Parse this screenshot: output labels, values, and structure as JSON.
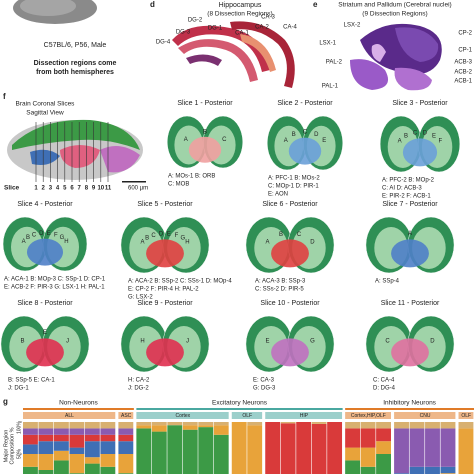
{
  "panel_c": {
    "strain": "C57BL/6, P56, Male",
    "note": [
      "Dissection regions come",
      "from both hemispheres"
    ]
  },
  "panel_d": {
    "letter": "d",
    "title": "Hippocampus",
    "subtitle": "(8 Dissection Regions)",
    "labels": [
      "DG-2",
      "DG-1",
      "CA-3",
      "DG-3",
      "CA-1",
      "CA-2",
      "CA-4",
      "DG-4"
    ]
  },
  "panel_e": {
    "letter": "e",
    "title": "Striatum and Pallidum (Cerebral nuclei)",
    "subtitle": "(9 Dissection Regions)",
    "labels": [
      "LSX-2",
      "CP-2",
      "LSX-1",
      "CP-1",
      "ACB-3",
      "PAL-2",
      "ACB-2",
      "ACB-1",
      "PAL-1"
    ]
  },
  "panel_f": {
    "letter": "f",
    "title": "Brain Coronal Slices",
    "subtitle": "Sagittal View",
    "slice_label": "Slice",
    "slice_numbers": [
      1,
      2,
      3,
      4,
      5,
      6,
      7,
      8,
      9,
      10,
      11
    ],
    "scale": "600 µm",
    "slices": [
      {
        "title": "Slice 1 - Posterior",
        "letters": [
          "A",
          "B",
          "C"
        ],
        "legend": [
          "A: MOs-1  B: ORB",
          "C: MOB"
        ]
      },
      {
        "title": "Slice 2 - Posterior",
        "letters": [
          "A",
          "B",
          "C",
          "D",
          "E"
        ],
        "legend": [
          "A: PFC-1  B: MOs-2",
          "C: MOp-1  D: PIR-1",
          "E: AON"
        ]
      },
      {
        "title": "Slice 3 - Posterior",
        "letters": [
          "A",
          "B",
          "C",
          "D",
          "E",
          "F"
        ],
        "legend": [
          "A: PFC-2  B: MOp-2",
          "C: AI  D: ACB-3",
          "E: PIR-2  F: ACB-1"
        ]
      },
      {
        "title": "Slice 4 - Posterior",
        "letters": [
          "A",
          "B",
          "C",
          "D",
          "E",
          "F",
          "G",
          "H"
        ],
        "legend": [
          "A: ACA-1  B: MOp-3  C: SSp-1  D: CP-1",
          "E: ACB-2  F: PIR-3  G: LSX-1  H: PAL-1"
        ]
      },
      {
        "title": "Slice 5 - Posterior",
        "letters": [
          "A",
          "B",
          "C",
          "D",
          "E",
          "F",
          "G",
          "H"
        ],
        "legend": [
          "A: ACA-2  B: SSp-2  C: SSs-1  D: MOp-4",
          "E: CP-2  F: PIR-4  H: PAL-2",
          "G: LSX-2"
        ]
      },
      {
        "title": "Slice 6 - Posterior",
        "letters": [
          "A",
          "B",
          "C",
          "D"
        ],
        "legend": [
          "A: ACA-3  B: SSp-3",
          "C: SSs-2  D: PIR-5"
        ]
      },
      {
        "title": "Slice 7 - Posterior",
        "letters": [
          "A"
        ],
        "legend": [
          "A: SSp-4"
        ]
      },
      {
        "title": "Slice 8 - Posterior",
        "letters": [
          "B",
          "E",
          "J"
        ],
        "legend": [
          "B: SSp-5  E: CA-1",
          "J: DG-1"
        ]
      },
      {
        "title": "Slice 9 - Posterior",
        "letters": [
          "H",
          "J"
        ],
        "legend": [
          "H: CA-2",
          "J: DG-2"
        ]
      },
      {
        "title": "Slice 10 - Posterior",
        "letters": [
          "E",
          "G"
        ],
        "legend": [
          "E: CA-3",
          "G: DG-3"
        ]
      },
      {
        "title": "Slice 11 - Posterior",
        "letters": [
          "C",
          "D"
        ],
        "legend": [
          "C: CA-4",
          "D: DG-4"
        ]
      }
    ]
  },
  "panel_g": {
    "letter": "g",
    "axis_label": [
      "Major Region",
      "Composition %"
    ],
    "ylim": [
      0,
      100
    ],
    "yticks": [
      {
        "value": 100,
        "label": "100%"
      },
      {
        "value": 50,
        "label": "50%"
      }
    ],
    "colors": [
      "#3c9a46",
      "#e8a33a",
      "#3f6fb5",
      "#d93a3a",
      "#8a5bb0",
      "#d8b070"
    ],
    "groups": [
      {
        "label": "Non-Neurons",
        "color": "#e07b28",
        "subgroups": [
          {
            "label": "ALL",
            "columns": [
              [
                30,
                20,
                15,
                15,
                10,
                10
              ],
              [
                25,
                25,
                20,
                10,
                10,
                10
              ],
              [
                40,
                15,
                15,
                10,
                10,
                10
              ],
              [
                20,
                30,
                10,
                20,
                10,
                10
              ],
              [
                35,
                10,
                25,
                10,
                10,
                10
              ],
              [
                30,
                20,
                20,
                10,
                10,
                10
              ]
            ]
          },
          {
            "label": "ASC",
            "columns": [
              [
                20,
                30,
                20,
                10,
                10,
                10
              ]
            ]
          }
        ]
      },
      {
        "label": "Excitatory Neurons",
        "color": "#4aa8a0",
        "subgroups": [
          {
            "label": "Cortex",
            "columns": [
              [
                90,
                5,
                0,
                0,
                0,
                5
              ],
              [
                85,
                10,
                0,
                0,
                0,
                5
              ],
              [
                95,
                0,
                0,
                0,
                0,
                5
              ],
              [
                88,
                7,
                0,
                0,
                0,
                5
              ],
              [
                92,
                3,
                0,
                0,
                0,
                5
              ],
              [
                80,
                15,
                0,
                0,
                0,
                5
              ]
            ]
          },
          {
            "label": "OLF",
            "columns": [
              [
                0,
                100,
                0,
                0,
                0,
                0
              ],
              [
                10,
                85,
                0,
                0,
                0,
                5
              ]
            ]
          },
          {
            "label": "HIP",
            "columns": [
              [
                0,
                0,
                0,
                100,
                0,
                0
              ],
              [
                0,
                0,
                0,
                98,
                0,
                2
              ],
              [
                0,
                0,
                0,
                100,
                0,
                0
              ],
              [
                0,
                0,
                0,
                97,
                0,
                3
              ],
              [
                0,
                0,
                0,
                100,
                0,
                0
              ]
            ]
          }
        ]
      },
      {
        "label": "Inhibitory Neurons",
        "color": "#e07b28",
        "subgroups": [
          {
            "label": "Cortex,HIP,OLF",
            "columns": [
              [
                40,
                20,
                0,
                30,
                0,
                10
              ],
              [
                30,
                30,
                0,
                30,
                0,
                10
              ],
              [
                50,
                20,
                0,
                20,
                0,
                10
              ]
            ]
          },
          {
            "label": "CNU",
            "columns": [
              [
                0,
                10,
                10,
                0,
                70,
                10
              ],
              [
                5,
                5,
                20,
                0,
                60,
                10
              ],
              [
                0,
                0,
                30,
                0,
                60,
                10
              ],
              [
                10,
                10,
                10,
                0,
                60,
                10
              ]
            ]
          },
          {
            "label": "OLF",
            "columns": [
              [
                0,
                90,
                0,
                0,
                0,
                10
              ]
            ]
          }
        ]
      }
    ]
  }
}
